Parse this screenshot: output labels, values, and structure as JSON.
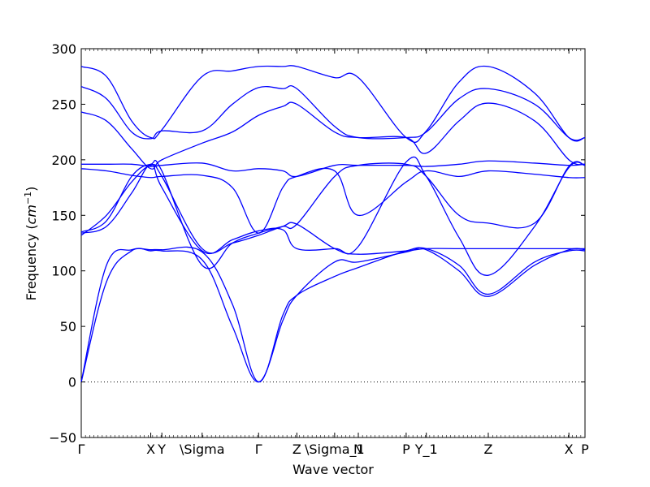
{
  "chart_data": {
    "type": "line",
    "title": "",
    "xlabel": "Wave vector",
    "ylabel": "Frequency",
    "ylabel_unit_prefix": "cm",
    "ylabel_unit_power": "−1",
    "ylim": [
      -50,
      300
    ],
    "xlim": [
      0,
      1
    ],
    "y_ticks": [
      -50,
      0,
      50,
      100,
      150,
      200,
      250,
      300
    ],
    "x_ticks": [
      {
        "label": "Γ",
        "x": 0.0
      },
      {
        "label": "X",
        "x": 0.138
      },
      {
        "label": "Y",
        "x": 0.16
      },
      {
        "label": "\\Sigma",
        "x": 0.24
      },
      {
        "label": "Γ",
        "x": 0.352
      },
      {
        "label": "Z",
        "x": 0.428
      },
      {
        "label": "\\Sigma_1",
        "x": 0.503
      },
      {
        "label": "N",
        "x": 0.55
      },
      {
        "label": "P",
        "x": 0.645
      },
      {
        "label": "Y_1",
        "x": 0.685
      },
      {
        "label": "Z",
        "x": 0.808
      },
      {
        "label": "X",
        "x": 0.968
      },
      {
        "label": "P",
        "x": 1.0
      }
    ],
    "zero_line": {
      "y": 0,
      "style": "dotted"
    },
    "grid": false,
    "line_color": "#0000ff",
    "series": [
      {
        "x": [
          0,
          0.05,
          0.1,
          0.138,
          0.16,
          0.24,
          0.3,
          0.352,
          0.4,
          0.428,
          0.503,
          0.55,
          0.645,
          0.685,
          0.75,
          0.808,
          0.9,
          0.968,
          1.0
        ],
        "y": [
          0,
          105,
          119,
          119,
          119,
          117,
          70,
          0,
          60,
          78,
          95,
          103,
          118,
          119,
          100,
          77,
          105,
          119,
          119
        ]
      },
      {
        "x": [
          0,
          0.05,
          0.1,
          0.138,
          0.16,
          0.24,
          0.3,
          0.352,
          0.4,
          0.428,
          0.503,
          0.55,
          0.645,
          0.685,
          0.75,
          0.808,
          0.9,
          0.968,
          1.0
        ],
        "y": [
          0,
          90,
          118,
          118,
          118,
          110,
          50,
          0,
          55,
          78,
          108,
          108,
          117,
          120,
          105,
          79,
          108,
          118,
          118
        ]
      },
      {
        "x": [
          0,
          0.05,
          0.1,
          0.138,
          0.16,
          0.24,
          0.3,
          0.352,
          0.4,
          0.428,
          0.503,
          0.55,
          0.645,
          0.685,
          0.75,
          0.808,
          0.9,
          0.968,
          1.0
        ],
        "y": [
          132,
          150,
          180,
          195,
          185,
          120,
          125,
          132,
          140,
          142,
          120,
          115,
          118,
          120,
          120,
          120,
          120,
          120,
          120
        ]
      },
      {
        "x": [
          0,
          0.05,
          0.1,
          0.138,
          0.16,
          0.24,
          0.3,
          0.352,
          0.4,
          0.428,
          0.503,
          0.55,
          0.645,
          0.685,
          0.75,
          0.808,
          0.9,
          0.968,
          1.0
        ],
        "y": [
          134,
          140,
          170,
          196,
          175,
          118,
          128,
          136,
          137,
          120,
          120,
          122,
          198,
          185,
          130,
          96,
          140,
          193,
          195
        ]
      },
      {
        "x": [
          0,
          0.05,
          0.1,
          0.138,
          0.16,
          0.24,
          0.3,
          0.352,
          0.4,
          0.428,
          0.503,
          0.55,
          0.645,
          0.685,
          0.75,
          0.808,
          0.9,
          0.968,
          1.0
        ],
        "y": [
          135,
          145,
          185,
          196,
          190,
          105,
          125,
          134,
          140,
          142,
          185,
          195,
          196,
          185,
          150,
          143,
          143,
          194,
          195
        ]
      },
      {
        "x": [
          0,
          0.05,
          0.1,
          0.138,
          0.16,
          0.24,
          0.3,
          0.352,
          0.4,
          0.428,
          0.503,
          0.55,
          0.645,
          0.685,
          0.75,
          0.808,
          0.9,
          0.968,
          1.0
        ],
        "y": [
          192,
          190,
          186,
          184,
          185,
          186,
          175,
          134,
          175,
          185,
          190,
          150,
          180,
          190,
          185,
          190,
          187,
          184,
          184
        ]
      },
      {
        "x": [
          0,
          0.05,
          0.1,
          0.138,
          0.16,
          0.24,
          0.3,
          0.352,
          0.4,
          0.428,
          0.503,
          0.55,
          0.645,
          0.685,
          0.75,
          0.808,
          0.9,
          0.968,
          1.0
        ],
        "y": [
          196,
          196,
          196,
          194,
          195,
          197,
          190,
          192,
          190,
          185,
          195,
          195,
          195,
          194,
          196,
          199,
          197,
          195,
          196
        ]
      },
      {
        "x": [
          0,
          0.05,
          0.1,
          0.138,
          0.16,
          0.24,
          0.3,
          0.352,
          0.4,
          0.428,
          0.503,
          0.55,
          0.645,
          0.685,
          0.75,
          0.808,
          0.9,
          0.968,
          1.0
        ],
        "y": [
          243,
          235,
          210,
          192,
          200,
          215,
          225,
          240,
          248,
          250,
          225,
          220,
          220,
          206,
          235,
          251,
          235,
          200,
          196
        ]
      },
      {
        "x": [
          0,
          0.05,
          0.1,
          0.138,
          0.16,
          0.24,
          0.3,
          0.352,
          0.4,
          0.428,
          0.503,
          0.55,
          0.645,
          0.685,
          0.75,
          0.808,
          0.9,
          0.968,
          1.0
        ],
        "y": [
          266,
          255,
          225,
          219,
          226,
          226,
          250,
          265,
          264,
          264,
          230,
          220,
          220,
          225,
          255,
          264,
          250,
          220,
          220
        ]
      },
      {
        "x": [
          0,
          0.05,
          0.1,
          0.138,
          0.16,
          0.24,
          0.3,
          0.352,
          0.4,
          0.428,
          0.503,
          0.55,
          0.645,
          0.685,
          0.75,
          0.808,
          0.9,
          0.968,
          1.0
        ],
        "y": [
          284,
          275,
          235,
          220,
          227,
          275,
          280,
          284,
          284,
          284,
          274,
          274,
          220,
          226,
          270,
          284,
          260,
          220,
          220
        ]
      }
    ]
  }
}
